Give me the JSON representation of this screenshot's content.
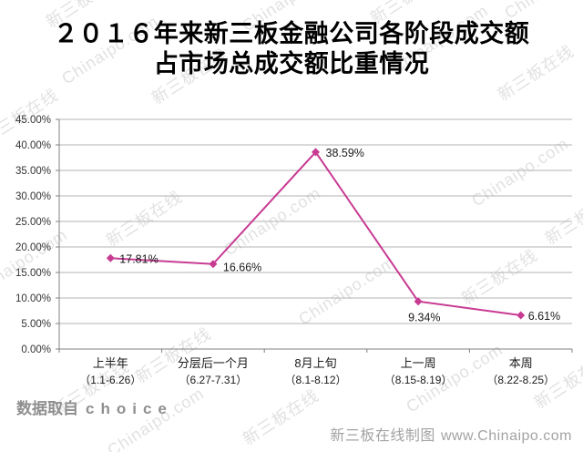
{
  "title": {
    "line1": "２０１６年来新三板金融公司各阶段成交额",
    "line2": "占市场总成交额比重情况"
  },
  "watermark": {
    "texts": [
      "新三板在线",
      "Chinaipo.com"
    ],
    "color": "#c9c9c9"
  },
  "footer": {
    "source_prefix": "数据取自",
    "source_name": "choice",
    "credit": "新三板在线制图",
    "website": "www.Chinaipo.com"
  },
  "chart_data": {
    "type": "line",
    "title": "２０１６年来新三板金融公司各阶段成交额占市场总成交额比重情况",
    "series_color": "#C83B93",
    "categories": [
      {
        "label": "上半年",
        "sublabel": "（1.1-6.26）"
      },
      {
        "label": "分层后一个月",
        "sublabel": "（6.27-7.31）"
      },
      {
        "label": "8月上旬",
        "sublabel": "（8.1-8.12）"
      },
      {
        "label": "上一周",
        "sublabel": "（8.15-8.19）"
      },
      {
        "label": "本周",
        "sublabel": "（8.22-8.25）"
      }
    ],
    "values": [
      17.81,
      16.66,
      38.59,
      9.34,
      6.61
    ],
    "data_labels": [
      "17.81%",
      "16.66%",
      "38.59%",
      "9.34%",
      "6.61%"
    ],
    "ylim": [
      0,
      45
    ],
    "ytick_step": 5,
    "ytick_labels": [
      "0.00%",
      "5.00%",
      "10.00%",
      "15.00%",
      "20.00%",
      "25.00%",
      "30.00%",
      "35.00%",
      "40.00%",
      "45.00%"
    ],
    "grid": true,
    "legend": "none",
    "xlabel": "",
    "ylabel": ""
  }
}
